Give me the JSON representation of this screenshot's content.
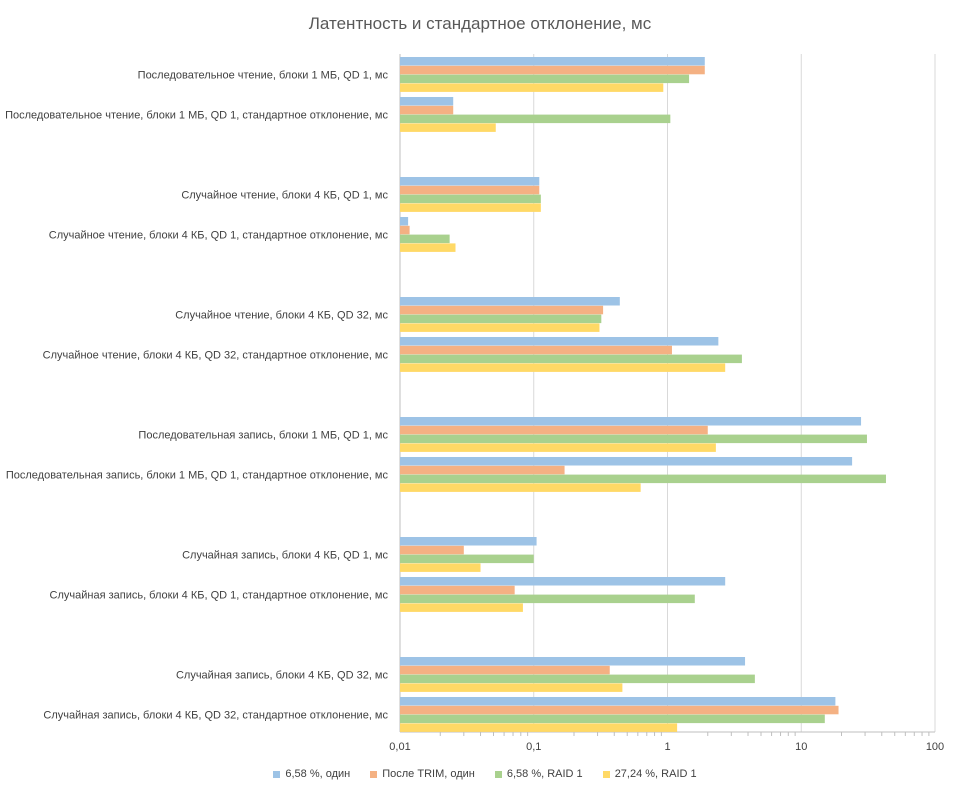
{
  "chart_data": {
    "type": "bar",
    "orientation": "horizontal",
    "title": "Латентность и стандартное отклонение, мс",
    "xscale": "log",
    "xlim": [
      0.01,
      100
    ],
    "x_ticks": [
      "0,01",
      "0,1",
      "1",
      "10",
      "100"
    ],
    "legend_position": "bottom",
    "categories": [
      "Последовательное чтение, блоки 1 МБ, QD 1, мс",
      "Последовательное чтение, блоки 1 МБ, QD 1, стандартное отклонение, мс",
      "Случайное чтение, блоки 4 КБ, QD 1, мс",
      "Случайное чтение, блоки 4 КБ, QD 1, стандартное отклонение, мс",
      "Случайное чтение, блоки 4 КБ, QD 32, мс",
      "Случайное чтение, блоки 4 КБ, QD 32, стандартное отклонение, мс",
      "Последовательная запись, блоки 1 МБ, QD 1, мс",
      "Последовательная запись, блоки 1 МБ, QD 1, стандартное отклонение, мс",
      "Случайная запись, блоки 4 КБ, QD 1, мс",
      "Случайная запись, блоки 4 КБ, QD 1, стандартное отклонение, мс",
      "Случайная запись, блоки 4 КБ, QD 32, мс",
      "Случайная запись, блоки 4 КБ, QD 32, стандартное отклонение, мс"
    ],
    "series": [
      {
        "name": "6,58 %, один",
        "color": "#9dc3e6",
        "values": [
          1.9,
          0.025,
          0.11,
          0.0115,
          0.44,
          2.4,
          28,
          24,
          0.105,
          2.7,
          3.8,
          18
        ]
      },
      {
        "name": "После TRIM, один",
        "color": "#f4b183",
        "values": [
          1.9,
          0.025,
          0.11,
          0.0118,
          0.33,
          1.08,
          2.0,
          0.17,
          0.03,
          0.072,
          0.37,
          19
        ]
      },
      {
        "name": "6,58 %, RAID 1",
        "color": "#a9d18e",
        "values": [
          1.45,
          1.05,
          0.113,
          0.0235,
          0.32,
          3.6,
          31,
          43,
          0.1,
          1.6,
          4.5,
          15
        ]
      },
      {
        "name": "27,24 %, RAID 1",
        "color": "#ffd966",
        "values": [
          0.93,
          0.052,
          0.113,
          0.026,
          0.31,
          2.7,
          2.3,
          0.63,
          0.04,
          0.083,
          0.46,
          1.18
        ]
      }
    ]
  }
}
